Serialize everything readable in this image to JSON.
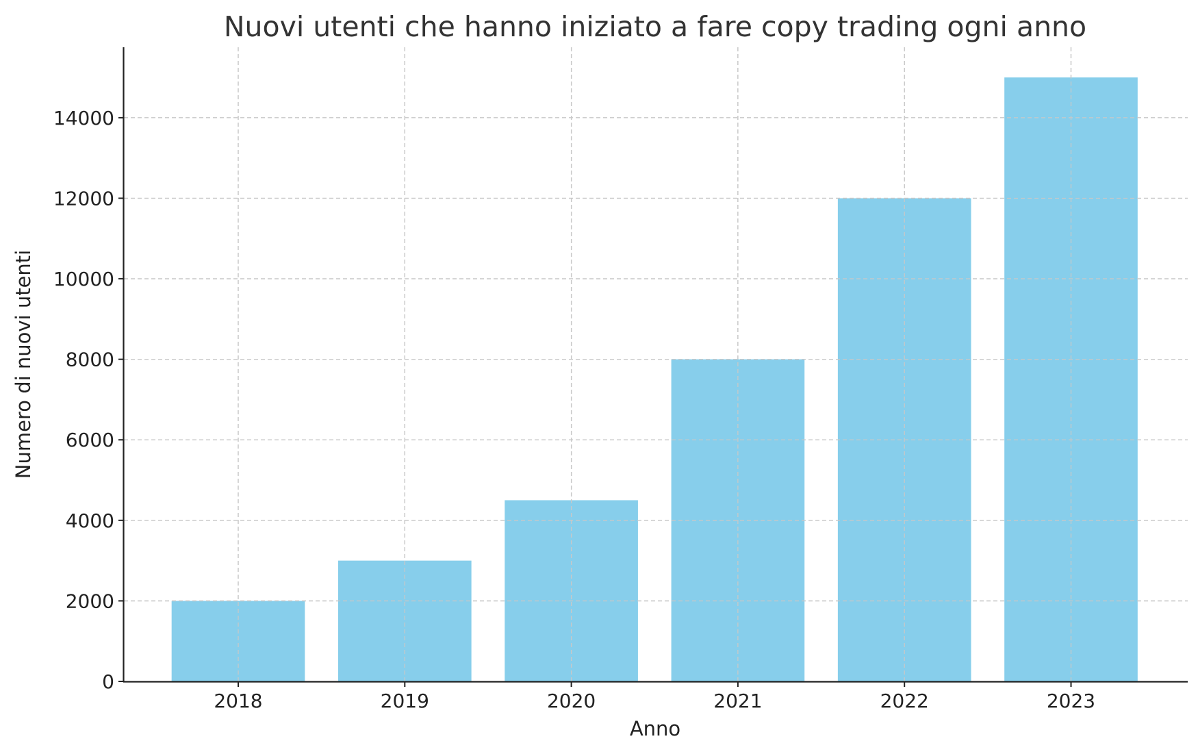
{
  "chart_data": {
    "type": "bar",
    "title": "Nuovi utenti che hanno iniziato a fare copy trading ogni anno",
    "xlabel": "Anno",
    "ylabel": "Numero di nuovi utenti",
    "categories": [
      "2018",
      "2019",
      "2020",
      "2021",
      "2022",
      "2023"
    ],
    "values": [
      2000,
      3000,
      4500,
      8000,
      12000,
      15000
    ],
    "ylim": [
      0,
      15750
    ],
    "yticks": [
      0,
      2000,
      4000,
      6000,
      8000,
      10000,
      12000,
      14000
    ],
    "grid": true,
    "bar_color": "#87CEEB"
  }
}
